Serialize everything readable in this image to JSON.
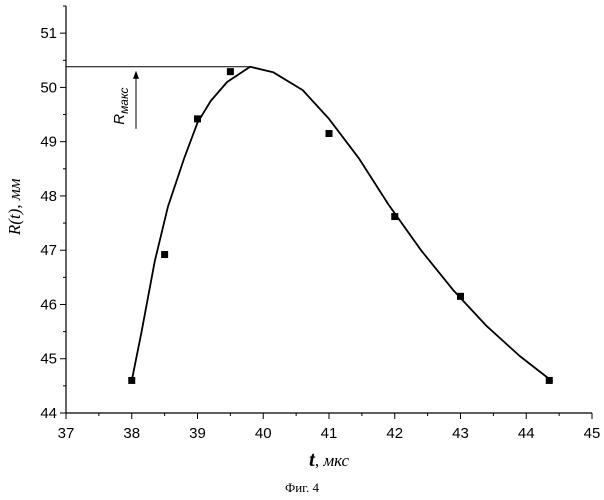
{
  "chart_data": {
    "type": "scatter",
    "xlim": [
      37,
      45
    ],
    "ylim": [
      44,
      51.5
    ],
    "x_ticks": [
      "37",
      "38",
      "39",
      "40",
      "41",
      "42",
      "43",
      "44",
      "45"
    ],
    "y_ticks": [
      "44",
      "45",
      "46",
      "47",
      "48",
      "49",
      "50",
      "51"
    ],
    "xlabel_main": "t",
    "xlabel_unit": "мкс",
    "ylabel_main": "R(t)",
    "ylabel_unit": "мм",
    "annotation": {
      "label_main": "R",
      "label_sub": "макс",
      "y_level": 50.38
    },
    "caption": "Фиг. 4",
    "series": [
      {
        "kind": "points",
        "marker": "square",
        "points": [
          [
            38.0,
            44.6
          ],
          [
            38.5,
            46.92
          ],
          [
            39.0,
            49.42
          ],
          [
            39.5,
            50.29
          ],
          [
            41.0,
            49.15
          ],
          [
            42.0,
            47.62
          ],
          [
            43.0,
            46.15
          ],
          [
            44.35,
            44.6
          ]
        ]
      },
      {
        "kind": "line",
        "points": [
          [
            38.0,
            44.6
          ],
          [
            38.15,
            45.5
          ],
          [
            38.35,
            46.8
          ],
          [
            38.55,
            47.8
          ],
          [
            38.8,
            48.7
          ],
          [
            39.0,
            49.35
          ],
          [
            39.2,
            49.75
          ],
          [
            39.45,
            50.1
          ],
          [
            39.8,
            50.38
          ],
          [
            40.15,
            50.28
          ],
          [
            40.6,
            49.95
          ],
          [
            41.0,
            49.42
          ],
          [
            41.45,
            48.7
          ],
          [
            41.9,
            47.85
          ],
          [
            42.4,
            47.0
          ],
          [
            42.9,
            46.25
          ],
          [
            43.4,
            45.6
          ],
          [
            43.9,
            45.05
          ],
          [
            44.4,
            44.58
          ]
        ]
      }
    ],
    "colors": {
      "ink": "#000000",
      "background": "#ffffff"
    }
  }
}
